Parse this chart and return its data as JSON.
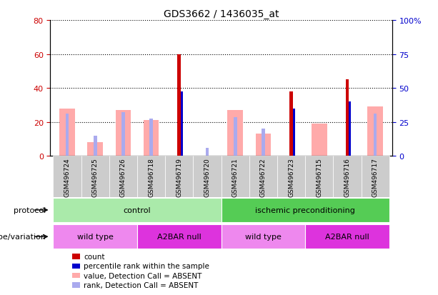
{
  "title": "GDS3662 / 1436035_at",
  "samples": [
    "GSM496724",
    "GSM496725",
    "GSM496726",
    "GSM496718",
    "GSM496719",
    "GSM496720",
    "GSM496721",
    "GSM496722",
    "GSM496723",
    "GSM496715",
    "GSM496716",
    "GSM496717"
  ],
  "count": [
    null,
    null,
    null,
    null,
    60,
    null,
    null,
    null,
    38,
    null,
    45,
    null
  ],
  "percentile_rank": [
    null,
    null,
    null,
    null,
    38,
    null,
    null,
    null,
    28,
    null,
    32,
    null
  ],
  "value_absent": [
    28,
    8,
    27,
    21,
    null,
    null,
    27,
    13,
    null,
    19,
    null,
    29
  ],
  "rank_absent": [
    25,
    12,
    26,
    22,
    null,
    5,
    23,
    16,
    null,
    null,
    null,
    25
  ],
  "ylim_left": [
    0,
    80
  ],
  "ylim_right": [
    0,
    100
  ],
  "yticks_left": [
    0,
    20,
    40,
    60,
    80
  ],
  "yticks_right": [
    0,
    25,
    50,
    75,
    100
  ],
  "ytick_labels_left": [
    "0",
    "20",
    "40",
    "60",
    "80"
  ],
  "ytick_labels_right": [
    "0",
    "25",
    "50",
    "75",
    "100%"
  ],
  "color_count": "#cc0000",
  "color_rank": "#0000cc",
  "color_value_absent": "#ffaaaa",
  "color_rank_absent": "#aaaaee",
  "protocol_groups": [
    {
      "label": "control",
      "start": 0,
      "end": 5,
      "color": "#aaeaaa"
    },
    {
      "label": "ischemic preconditioning",
      "start": 6,
      "end": 11,
      "color": "#55cc55"
    }
  ],
  "genotype_groups": [
    {
      "label": "wild type",
      "start": 0,
      "end": 2,
      "color": "#ee88ee"
    },
    {
      "label": "A2BAR null",
      "start": 3,
      "end": 5,
      "color": "#dd33dd"
    },
    {
      "label": "wild type",
      "start": 6,
      "end": 8,
      "color": "#ee88ee"
    },
    {
      "label": "A2BAR null",
      "start": 9,
      "end": 11,
      "color": "#dd33dd"
    }
  ],
  "xtick_bg": "#cccccc",
  "plot_bg": "#ffffff",
  "border_color": "#000000"
}
